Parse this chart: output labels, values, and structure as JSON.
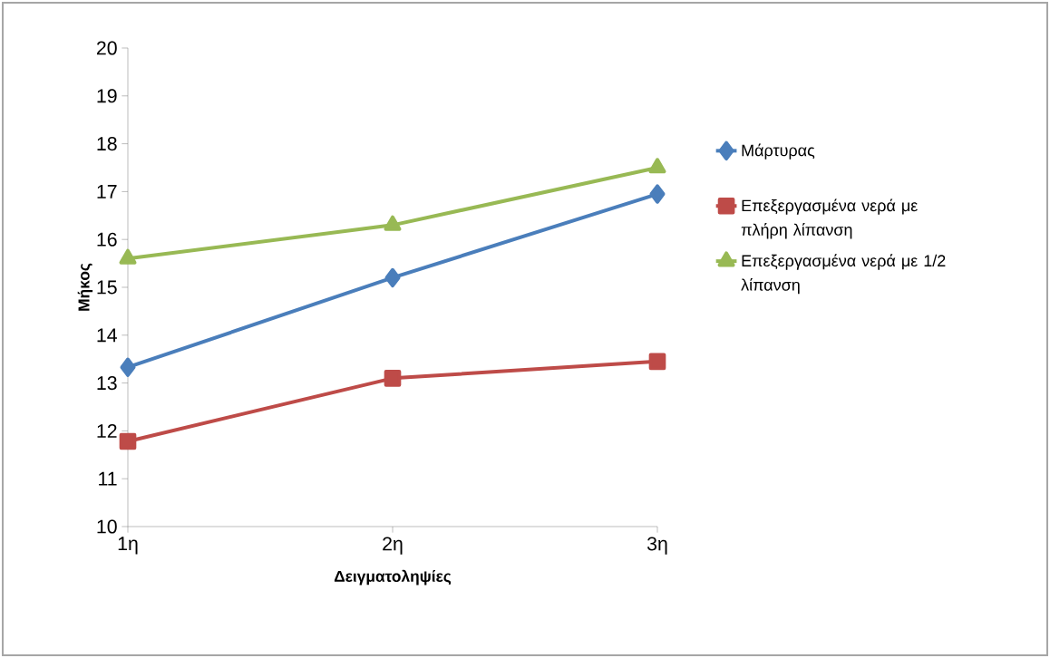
{
  "chart_data": {
    "type": "line",
    "xlabel": "Δειγματοληψίες",
    "ylabel": "Μήκος",
    "categories": [
      "1η",
      "2η",
      "3η"
    ],
    "series": [
      {
        "name": "Μάρτυρας",
        "color": "#4a7ebb",
        "marker": "diamond",
        "values": [
          13.33,
          15.2,
          16.95
        ]
      },
      {
        "name": "Επεξεργασμένα νερά με πλήρη λίπανση",
        "color": "#be4b48",
        "marker": "square",
        "values": [
          11.78,
          13.1,
          13.45
        ]
      },
      {
        "name": "Επεξεργασμένα νερά με 1/2 λίπανση",
        "color": "#98b954",
        "marker": "triangle",
        "values": [
          15.6,
          16.3,
          17.5
        ]
      }
    ],
    "ylim": [
      10,
      20
    ],
    "yticks": [
      10,
      11,
      12,
      13,
      14,
      15,
      16,
      17,
      18,
      19,
      20
    ],
    "grid": false,
    "legend": "right",
    "line_style": "solid"
  }
}
